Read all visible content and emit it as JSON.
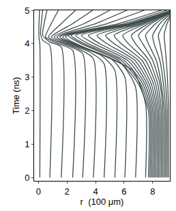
{
  "chart_data": {
    "type": "line",
    "x_label": "r  (100 μm)",
    "y_label": "Time (ns)",
    "xlim": [
      -0.3,
      9.2
    ],
    "ylim": [
      -0.1,
      5
    ],
    "xticks": [
      0,
      2,
      4,
      6,
      8
    ],
    "yticks": [
      0,
      1,
      2,
      3,
      4,
      5
    ],
    "grid": false,
    "color": "#3d4a4a",
    "series": [
      {
        "x": [
          0.1,
          0.1,
          0.05,
          0.03,
          0.05,
          0.08
        ],
        "values": [
          0,
          4.0,
          4.15,
          4.4,
          4.7,
          5
        ]
      },
      {
        "x": [
          0.8,
          0.8,
          0.3,
          0.15,
          0.2,
          0.3
        ],
        "values": [
          0,
          3.95,
          4.1,
          4.3,
          4.6,
          5
        ]
      },
      {
        "x": [
          1.6,
          1.6,
          0.8,
          0.3,
          0.4,
          0.6
        ],
        "values": [
          0,
          3.9,
          4.05,
          4.25,
          4.6,
          5
        ]
      },
      {
        "x": [
          2.4,
          2.4,
          1.4,
          0.5,
          0.9,
          1.4
        ],
        "values": [
          0,
          3.8,
          4.0,
          4.2,
          4.6,
          5
        ]
      },
      {
        "x": [
          3.1,
          3.1,
          2.0,
          0.7,
          1.6,
          2.6
        ],
        "values": [
          0,
          3.7,
          3.95,
          4.2,
          4.6,
          5
        ]
      },
      {
        "x": [
          3.85,
          3.85,
          2.8,
          0.9,
          2.4,
          3.8
        ],
        "values": [
          0,
          3.55,
          3.85,
          4.2,
          4.6,
          5
        ]
      },
      {
        "x": [
          4.6,
          4.6,
          3.6,
          1.1,
          3.2,
          5.0
        ],
        "values": [
          0,
          3.4,
          3.75,
          4.2,
          4.6,
          5
        ]
      },
      {
        "x": [
          5.35,
          5.35,
          4.4,
          1.3,
          4.0,
          6.2
        ],
        "values": [
          0,
          3.2,
          3.65,
          4.2,
          4.6,
          5
        ]
      },
      {
        "x": [
          6.05,
          6.05,
          5.1,
          1.5,
          4.8,
          7.4
        ],
        "values": [
          0,
          3.0,
          3.55,
          4.2,
          4.6,
          5
        ]
      },
      {
        "x": [
          6.8,
          6.8,
          5.8,
          1.7,
          5.6,
          8.6
        ],
        "values": [
          0,
          2.7,
          3.4,
          4.2,
          4.6,
          5
        ]
      },
      {
        "x": [
          7.5,
          7.5,
          6.6,
          1.9,
          6.4,
          9.5
        ],
        "values": [
          0,
          2.2,
          3.2,
          4.2,
          4.6,
          5
        ]
      },
      {
        "x": [
          7.7,
          7.7,
          7.0,
          5.6,
          3.0,
          2.1,
          6.0,
          9.0
        ],
        "values": [
          0,
          2.0,
          2.8,
          3.5,
          4.0,
          4.25,
          4.6,
          5
        ]
      },
      {
        "x": [
          7.8,
          7.8,
          7.15,
          5.8,
          3.2,
          2.3,
          6.3,
          9.3
        ],
        "values": [
          0,
          2.0,
          2.8,
          3.5,
          4.0,
          4.25,
          4.6,
          5
        ]
      },
      {
        "x": [
          7.9,
          7.9,
          7.3,
          6.0,
          3.5,
          2.6,
          6.5,
          9.5
        ],
        "values": [
          0,
          2.0,
          2.8,
          3.5,
          4.0,
          4.25,
          4.6,
          5
        ]
      },
      {
        "x": [
          8.0,
          8.0,
          7.45,
          6.25,
          3.9,
          3.0,
          6.6,
          9.5
        ],
        "values": [
          0,
          2.0,
          2.8,
          3.5,
          4.0,
          4.25,
          4.6,
          5
        ]
      },
      {
        "x": [
          8.1,
          8.1,
          7.6,
          6.5,
          4.3,
          3.5,
          6.7,
          9.5
        ],
        "values": [
          0,
          2.0,
          2.8,
          3.5,
          4.0,
          4.25,
          4.6,
          5
        ]
      },
      {
        "x": [
          8.2,
          8.2,
          7.75,
          6.75,
          4.8,
          4.1,
          6.9,
          9.5
        ],
        "values": [
          0,
          2.0,
          2.8,
          3.5,
          4.0,
          4.25,
          4.6,
          5
        ]
      },
      {
        "x": [
          8.3,
          8.3,
          7.9,
          7.0,
          5.3,
          4.7,
          7.1,
          9.5
        ],
        "values": [
          0,
          2.0,
          2.8,
          3.5,
          4.0,
          4.25,
          4.6,
          5
        ]
      },
      {
        "x": [
          8.4,
          8.4,
          8.05,
          7.25,
          5.8,
          5.3,
          7.3,
          9.5
        ],
        "values": [
          0,
          2.0,
          2.8,
          3.5,
          4.0,
          4.25,
          4.6,
          5
        ]
      },
      {
        "x": [
          8.5,
          8.5,
          8.2,
          7.5,
          6.3,
          5.9,
          7.5,
          9.5
        ],
        "values": [
          0,
          2.0,
          2.8,
          3.5,
          4.0,
          4.25,
          4.6,
          5
        ]
      },
      {
        "x": [
          8.6,
          8.6,
          8.35,
          7.75,
          6.8,
          6.5,
          7.7,
          9.5
        ],
        "values": [
          0,
          2.0,
          2.8,
          3.5,
          4.0,
          4.25,
          4.6,
          5
        ]
      },
      {
        "x": [
          8.7,
          8.7,
          8.5,
          8.0,
          7.3,
          7.0,
          7.9,
          9.5
        ],
        "values": [
          0,
          2.0,
          2.8,
          3.5,
          4.0,
          4.25,
          4.6,
          5
        ]
      },
      {
        "x": [
          8.8,
          8.8,
          8.6,
          8.25,
          7.7,
          7.5,
          8.2,
          9.5
        ],
        "values": [
          0,
          2.0,
          2.8,
          3.5,
          4.0,
          4.25,
          4.6,
          5
        ]
      },
      {
        "x": [
          8.9,
          8.9,
          8.75,
          8.5,
          8.1,
          8.0,
          8.5,
          9.5
        ],
        "values": [
          0,
          2.0,
          2.8,
          3.5,
          4.0,
          4.25,
          4.6,
          5
        ]
      },
      {
        "x": [
          9.0,
          9.0,
          8.9,
          8.7,
          8.5,
          8.4,
          8.8,
          9.5
        ],
        "values": [
          0,
          2.0,
          2.8,
          3.5,
          4.0,
          4.25,
          4.6,
          5
        ]
      },
      {
        "x": [
          9.1,
          9.1,
          9.05,
          8.95,
          8.85,
          8.8,
          9.0,
          9.5
        ],
        "values": [
          0,
          2.0,
          2.8,
          3.5,
          4.0,
          4.25,
          4.6,
          5
        ]
      }
    ]
  }
}
